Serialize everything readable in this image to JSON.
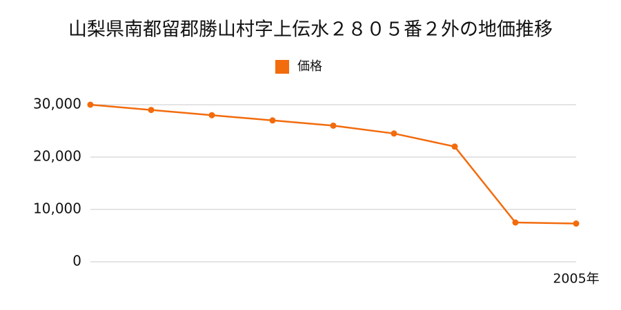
{
  "chart_data": {
    "type": "line",
    "title": "山梨県南都留郡勝山村字上伝水２８０５番２外の地価推移",
    "categories": [
      null,
      null,
      null,
      null,
      null,
      null,
      null,
      null,
      "2005年"
    ],
    "series": [
      {
        "name": "価格",
        "color": "#f26b0d",
        "values": [
          30000,
          29000,
          28000,
          27000,
          26000,
          24500,
          22000,
          7500,
          7300
        ]
      }
    ],
    "ylim": [
      0,
      30000
    ],
    "yticks": [
      0,
      {
        "value": 10000,
        "label": "10,000"
      },
      {
        "value": 20000,
        "label": "20,000"
      },
      {
        "value": 30000,
        "label": "30,000"
      }
    ],
    "grid": true,
    "legend": "top"
  }
}
